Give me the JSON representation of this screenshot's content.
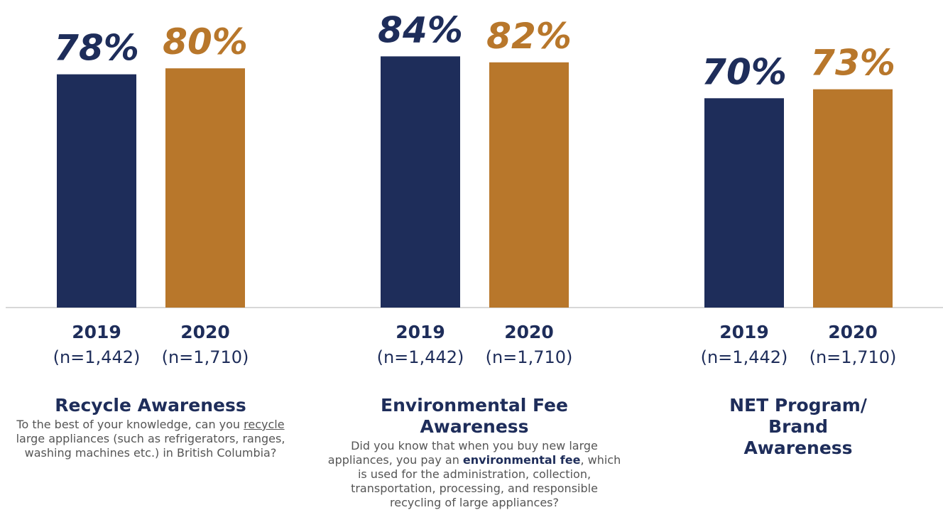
{
  "chart_data": [
    {
      "type": "bar",
      "title": "Recycle Awareness",
      "description": [
        {
          "text": "To the best of your knowledge, can you "
        },
        {
          "text": "recycle",
          "style": "underline"
        },
        {
          "text": " large appliances (such as refrigerators, ranges, washing machines etc.) in British Columbia?"
        }
      ],
      "categories": [
        "2019",
        "2020"
      ],
      "category_notes": [
        "(n=1,442)",
        "(n=1,710)"
      ],
      "values": [
        78,
        80
      ],
      "value_labels": [
        "78%",
        "80%"
      ],
      "colors": [
        "#1e2d5a",
        "#b8772b"
      ],
      "ylim": [
        0,
        100
      ]
    },
    {
      "type": "bar",
      "title": "Environmental Fee Awareness",
      "description": [
        {
          "text": "Did you know that when you buy new large appliances, you pay an "
        },
        {
          "text": "environmental fee",
          "style": "bold"
        },
        {
          "text": ", which is used for the administration, collection, transportation, processing, and responsible recycling of large appliances?"
        }
      ],
      "categories": [
        "2019",
        "2020"
      ],
      "category_notes": [
        "(n=1,442)",
        "(n=1,710)"
      ],
      "values": [
        84,
        82
      ],
      "value_labels": [
        "84%",
        "82%"
      ],
      "colors": [
        "#1e2d5a",
        "#b8772b"
      ],
      "ylim": [
        0,
        100
      ]
    },
    {
      "type": "bar",
      "title": "NET Program/ Brand Awareness",
      "categories": [
        "2019",
        "2020"
      ],
      "category_notes": [
        "(n=1,442)",
        "(n=1,710)"
      ],
      "values": [
        70,
        73
      ],
      "value_labels": [
        "70%",
        "73%"
      ],
      "colors": [
        "#1e2d5a",
        "#b8772b"
      ],
      "ylim": [
        0,
        100
      ]
    }
  ]
}
